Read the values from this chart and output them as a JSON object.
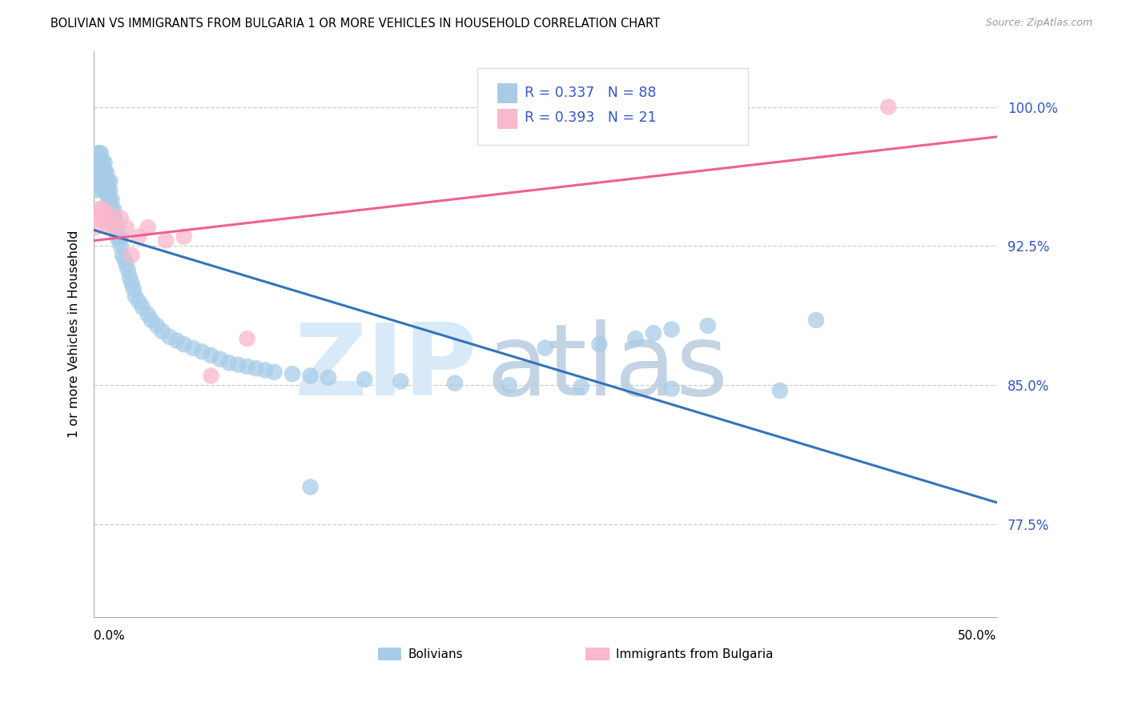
{
  "title": "BOLIVIAN VS IMMIGRANTS FROM BULGARIA 1 OR MORE VEHICLES IN HOUSEHOLD CORRELATION CHART",
  "source": "Source: ZipAtlas.com",
  "ylabel": "1 or more Vehicles in Household",
  "ytick_labels": [
    "100.0%",
    "92.5%",
    "85.0%",
    "77.5%"
  ],
  "ytick_values": [
    1.0,
    0.925,
    0.85,
    0.775
  ],
  "xlim": [
    0.0,
    0.5
  ],
  "ylim": [
    0.725,
    1.03
  ],
  "blue_color": "#a8cce8",
  "pink_color": "#f9b8cc",
  "blue_line_color": "#3374b8",
  "pink_line_color": "#f06090",
  "legend_text_blue": "R = 0.337   N = 88",
  "legend_text_pink": "R = 0.393   N = 21",
  "legend_label_blue": "Bolivians",
  "legend_label_pink": "Immigrants from Bulgaria",
  "text_blue_color": "#3355cc",
  "right_axis_color": "#3355cc",
  "watermark_zip": "ZIP",
  "watermark_atlas": "atlas",
  "blue_N": 88,
  "pink_N": 21,
  "blue_scatter_x": [
    0.001,
    0.001,
    0.002,
    0.002,
    0.002,
    0.002,
    0.003,
    0.003,
    0.003,
    0.003,
    0.003,
    0.004,
    0.004,
    0.004,
    0.004,
    0.005,
    0.005,
    0.005,
    0.005,
    0.006,
    0.006,
    0.006,
    0.006,
    0.007,
    0.007,
    0.007,
    0.008,
    0.008,
    0.008,
    0.009,
    0.009,
    0.009,
    0.01,
    0.01,
    0.011,
    0.011,
    0.012,
    0.012,
    0.013,
    0.013,
    0.014,
    0.015,
    0.015,
    0.016,
    0.017,
    0.018,
    0.019,
    0.02,
    0.021,
    0.022,
    0.023,
    0.025,
    0.027,
    0.03,
    0.032,
    0.035,
    0.038,
    0.042,
    0.046,
    0.05,
    0.055,
    0.06,
    0.065,
    0.07,
    0.075,
    0.08,
    0.085,
    0.09,
    0.095,
    0.1,
    0.11,
    0.12,
    0.13,
    0.15,
    0.17,
    0.2,
    0.23,
    0.27,
    0.32,
    0.38,
    0.12,
    0.25,
    0.28,
    0.3,
    0.31,
    0.32,
    0.34,
    0.4
  ],
  "blue_scatter_y": [
    0.96,
    0.955,
    0.975,
    0.97,
    0.965,
    0.96,
    0.975,
    0.97,
    0.965,
    0.96,
    0.975,
    0.97,
    0.965,
    0.96,
    0.975,
    0.965,
    0.96,
    0.955,
    0.97,
    0.96,
    0.955,
    0.965,
    0.97,
    0.955,
    0.96,
    0.965,
    0.95,
    0.955,
    0.96,
    0.95,
    0.955,
    0.96,
    0.945,
    0.95,
    0.94,
    0.945,
    0.935,
    0.94,
    0.93,
    0.935,
    0.928,
    0.925,
    0.93,
    0.92,
    0.918,
    0.915,
    0.912,
    0.908,
    0.905,
    0.902,
    0.898,
    0.895,
    0.892,
    0.888,
    0.885,
    0.882,
    0.879,
    0.876,
    0.874,
    0.872,
    0.87,
    0.868,
    0.866,
    0.864,
    0.862,
    0.861,
    0.86,
    0.859,
    0.858,
    0.857,
    0.856,
    0.855,
    0.854,
    0.853,
    0.852,
    0.851,
    0.85,
    0.849,
    0.848,
    0.847,
    0.795,
    0.87,
    0.872,
    0.875,
    0.878,
    0.88,
    0.882,
    0.885
  ],
  "pink_scatter_x": [
    0.001,
    0.002,
    0.003,
    0.004,
    0.005,
    0.006,
    0.007,
    0.008,
    0.009,
    0.01,
    0.012,
    0.015,
    0.018,
    0.021,
    0.025,
    0.03,
    0.04,
    0.05,
    0.065,
    0.085,
    0.44
  ],
  "pink_scatter_y": [
    0.935,
    0.94,
    0.945,
    0.94,
    0.945,
    0.94,
    0.938,
    0.935,
    0.942,
    0.938,
    0.935,
    0.94,
    0.935,
    0.92,
    0.93,
    0.935,
    0.928,
    0.93,
    0.855,
    0.875,
    1.0
  ]
}
